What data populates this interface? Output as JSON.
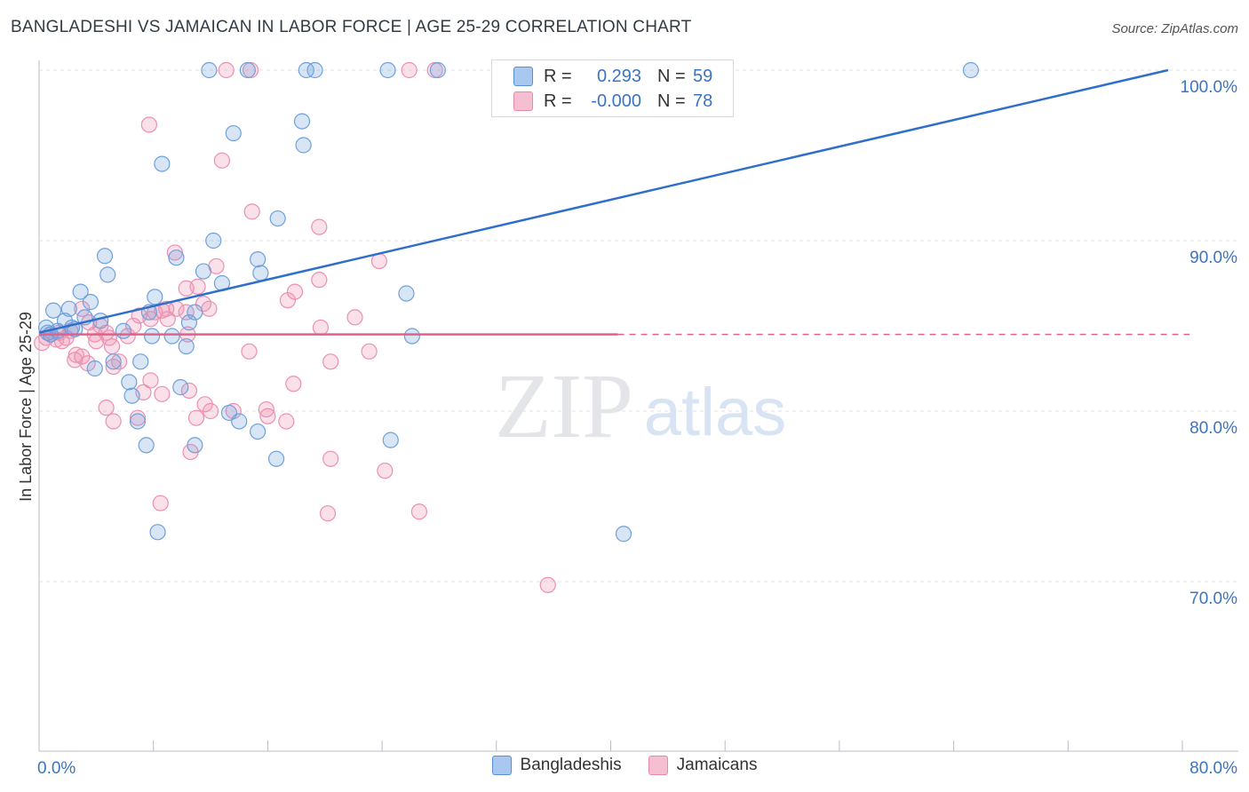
{
  "header": {
    "title": "BANGLADESHI VS JAMAICAN IN LABOR FORCE | AGE 25-29 CORRELATION CHART",
    "source": "Source: ZipAtlas.com"
  },
  "watermark": {
    "zip": "ZIP",
    "atlas": "atlas"
  },
  "legend": {
    "rows": [
      {
        "r_label": "R =",
        "r_value": "0.293",
        "n_label": "N =",
        "n_value": "59",
        "color": "#a9c8ef",
        "border": "#5b8fd3"
      },
      {
        "r_label": "R =",
        "r_value": "-0.000",
        "n_label": "N =",
        "n_value": "78",
        "color": "#f6bfd1",
        "border": "#e58aa9"
      }
    ]
  },
  "bottom_legend": [
    {
      "label": "Bangladeshis",
      "color": "#a9c8ef",
      "border": "#5b8fd3"
    },
    {
      "label": "Jamaicans",
      "color": "#f6bfd1",
      "border": "#e58aa9"
    }
  ],
  "chart_data": {
    "type": "scatter",
    "title": "BANGLADESHI VS JAMAICAN IN LABOR FORCE | AGE 25-29 CORRELATION CHART",
    "xlabel": "",
    "ylabel": "In Labor Force | Age 25-29",
    "xlim": [
      0,
      80
    ],
    "ylim": [
      60,
      101
    ],
    "x_tick_labels": [
      {
        "value": 0,
        "label": "0.0%"
      },
      {
        "value": 80,
        "label": "80.0%"
      }
    ],
    "x_minor_ticks": [
      0,
      8,
      16,
      24,
      32,
      40,
      48,
      56,
      64,
      72,
      80
    ],
    "y_ticks": [
      {
        "value": 70,
        "label": "70.0%"
      },
      {
        "value": 80,
        "label": "80.0%"
      },
      {
        "value": 90,
        "label": "90.0%"
      },
      {
        "value": 100,
        "label": "100.0%"
      }
    ],
    "colors": {
      "bangladeshis": "#6fa0dc",
      "jamaicans": "#ec90b0",
      "blue_line": "#2f6fcc",
      "pink_line": "#e0608e"
    },
    "series": [
      {
        "name": "Bangladeshis",
        "trendline": {
          "x": [
            0,
            79
          ],
          "y": [
            84.6,
            100.0
          ],
          "dashed_from": null
        },
        "points": [
          [
            11.9,
            100
          ],
          [
            14.6,
            100
          ],
          [
            18.7,
            100
          ],
          [
            19.3,
            100
          ],
          [
            24.4,
            100
          ],
          [
            27.9,
            100
          ],
          [
            65.2,
            100
          ],
          [
            18.4,
            97.0
          ],
          [
            13.6,
            96.3
          ],
          [
            18.5,
            95.6
          ],
          [
            8.6,
            94.5
          ],
          [
            16.7,
            91.3
          ],
          [
            12.2,
            90.0
          ],
          [
            4.6,
            89.1
          ],
          [
            9.6,
            89.0
          ],
          [
            15.3,
            88.9
          ],
          [
            4.8,
            88.0
          ],
          [
            11.5,
            88.2
          ],
          [
            12.8,
            87.5
          ],
          [
            15.5,
            88.1
          ],
          [
            2.9,
            87.0
          ],
          [
            8.1,
            86.7
          ],
          [
            25.7,
            86.9
          ],
          [
            3.6,
            86.4
          ],
          [
            1.0,
            85.9
          ],
          [
            2.1,
            86.0
          ],
          [
            7.7,
            85.8
          ],
          [
            10.9,
            85.8
          ],
          [
            3.2,
            85.5
          ],
          [
            1.8,
            85.3
          ],
          [
            4.3,
            85.3
          ],
          [
            0.5,
            84.9
          ],
          [
            1.3,
            84.7
          ],
          [
            0.8,
            84.5
          ],
          [
            2.5,
            84.8
          ],
          [
            7.9,
            84.4
          ],
          [
            9.3,
            84.4
          ],
          [
            10.3,
            83.8
          ],
          [
            10.5,
            85.2
          ],
          [
            26.1,
            84.4
          ],
          [
            5.2,
            82.9
          ],
          [
            7.1,
            82.9
          ],
          [
            3.9,
            82.5
          ],
          [
            6.3,
            81.7
          ],
          [
            9.9,
            81.4
          ],
          [
            6.5,
            80.9
          ],
          [
            13.3,
            79.9
          ],
          [
            6.9,
            79.4
          ],
          [
            14.0,
            79.4
          ],
          [
            15.3,
            78.8
          ],
          [
            7.5,
            78.0
          ],
          [
            10.9,
            78.0
          ],
          [
            24.6,
            78.3
          ],
          [
            16.6,
            77.2
          ],
          [
            8.3,
            72.9
          ],
          [
            40.9,
            72.8
          ],
          [
            0.6,
            84.6
          ],
          [
            2.3,
            84.9
          ],
          [
            5.9,
            84.7
          ]
        ]
      },
      {
        "name": "Jamaicans",
        "trendline": {
          "x": [
            0,
            40.5
          ],
          "y": [
            84.5,
            84.5
          ],
          "dashed_to": 80.5
        },
        "points": [
          [
            0.2,
            84.0
          ],
          [
            0.5,
            84.3
          ],
          [
            0.8,
            84.5
          ],
          [
            1.2,
            84.2
          ],
          [
            1.4,
            84.6
          ],
          [
            1.9,
            84.3
          ],
          [
            2.2,
            84.7
          ],
          [
            2.6,
            83.3
          ],
          [
            2.5,
            83.0
          ],
          [
            3.0,
            86.0
          ],
          [
            3.5,
            85.2
          ],
          [
            3.9,
            84.5
          ],
          [
            4.3,
            85.0
          ],
          [
            4.0,
            84.1
          ],
          [
            4.7,
            84.6
          ],
          [
            4.9,
            84.3
          ],
          [
            5.1,
            83.8
          ],
          [
            3.4,
            82.8
          ],
          [
            5.2,
            82.6
          ],
          [
            5.6,
            82.9
          ],
          [
            4.7,
            80.2
          ],
          [
            5.2,
            79.4
          ],
          [
            6.6,
            85.0
          ],
          [
            7.0,
            85.6
          ],
          [
            7.8,
            85.4
          ],
          [
            8.1,
            85.8
          ],
          [
            8.6,
            85.9
          ],
          [
            9.0,
            85.4
          ],
          [
            9.6,
            86.0
          ],
          [
            10.3,
            85.8
          ],
          [
            10.4,
            84.5
          ],
          [
            10.3,
            87.2
          ],
          [
            11.1,
            87.3
          ],
          [
            11.5,
            86.3
          ],
          [
            11.9,
            86.0
          ],
          [
            12.4,
            88.5
          ],
          [
            9.5,
            89.3
          ],
          [
            7.8,
            81.8
          ],
          [
            7.3,
            81.1
          ],
          [
            8.6,
            81.0
          ],
          [
            10.5,
            81.2
          ],
          [
            11.6,
            80.4
          ],
          [
            12.0,
            80.0
          ],
          [
            11.0,
            79.6
          ],
          [
            6.9,
            79.6
          ],
          [
            10.6,
            77.6
          ],
          [
            8.5,
            74.6
          ],
          [
            7.7,
            96.8
          ],
          [
            12.8,
            94.7
          ],
          [
            14.8,
            100
          ],
          [
            13.1,
            100
          ],
          [
            25.9,
            100
          ],
          [
            27.7,
            100
          ],
          [
            14.9,
            91.7
          ],
          [
            19.6,
            90.8
          ],
          [
            17.4,
            86.5
          ],
          [
            17.9,
            87.0
          ],
          [
            19.6,
            87.7
          ],
          [
            22.1,
            85.5
          ],
          [
            19.7,
            84.9
          ],
          [
            14.7,
            83.5
          ],
          [
            20.4,
            82.9
          ],
          [
            23.1,
            83.5
          ],
          [
            23.8,
            88.8
          ],
          [
            15.9,
            80.1
          ],
          [
            17.3,
            79.4
          ],
          [
            16.0,
            79.7
          ],
          [
            17.8,
            81.6
          ],
          [
            20.4,
            77.2
          ],
          [
            24.2,
            76.5
          ],
          [
            20.2,
            74.0
          ],
          [
            26.6,
            74.1
          ],
          [
            35.6,
            69.8
          ],
          [
            3.0,
            83.2
          ],
          [
            6.2,
            84.4
          ],
          [
            1.6,
            84.1
          ],
          [
            8.9,
            86.0
          ],
          [
            13.6,
            80.0
          ]
        ]
      }
    ]
  }
}
